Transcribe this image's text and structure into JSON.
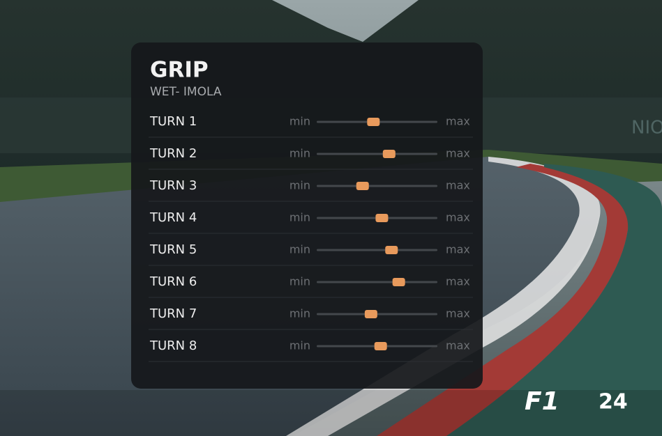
{
  "panel": {
    "title": "GRIP",
    "subtitle": "WET- IMOLA",
    "rows": [
      {
        "label": "TURN 1",
        "min": "min",
        "max": "max",
        "value": 0.47
      },
      {
        "label": "TURN 2",
        "min": "min",
        "max": "max",
        "value": 0.6
      },
      {
        "label": "TURN 3",
        "min": "min",
        "max": "max",
        "value": 0.38
      },
      {
        "label": "TURN 4",
        "min": "min",
        "max": "max",
        "value": 0.54
      },
      {
        "label": "TURN 5",
        "min": "min",
        "max": "max",
        "value": 0.62
      },
      {
        "label": "TURN 6",
        "min": "min",
        "max": "max",
        "value": 0.68
      },
      {
        "label": "TURN 7",
        "min": "min",
        "max": "max",
        "value": 0.45
      },
      {
        "label": "TURN 8",
        "min": "min",
        "max": "max",
        "value": 0.53
      }
    ]
  },
  "background_sign": "NIOUD",
  "logo": {
    "brand": "F1",
    "edition": "24"
  }
}
